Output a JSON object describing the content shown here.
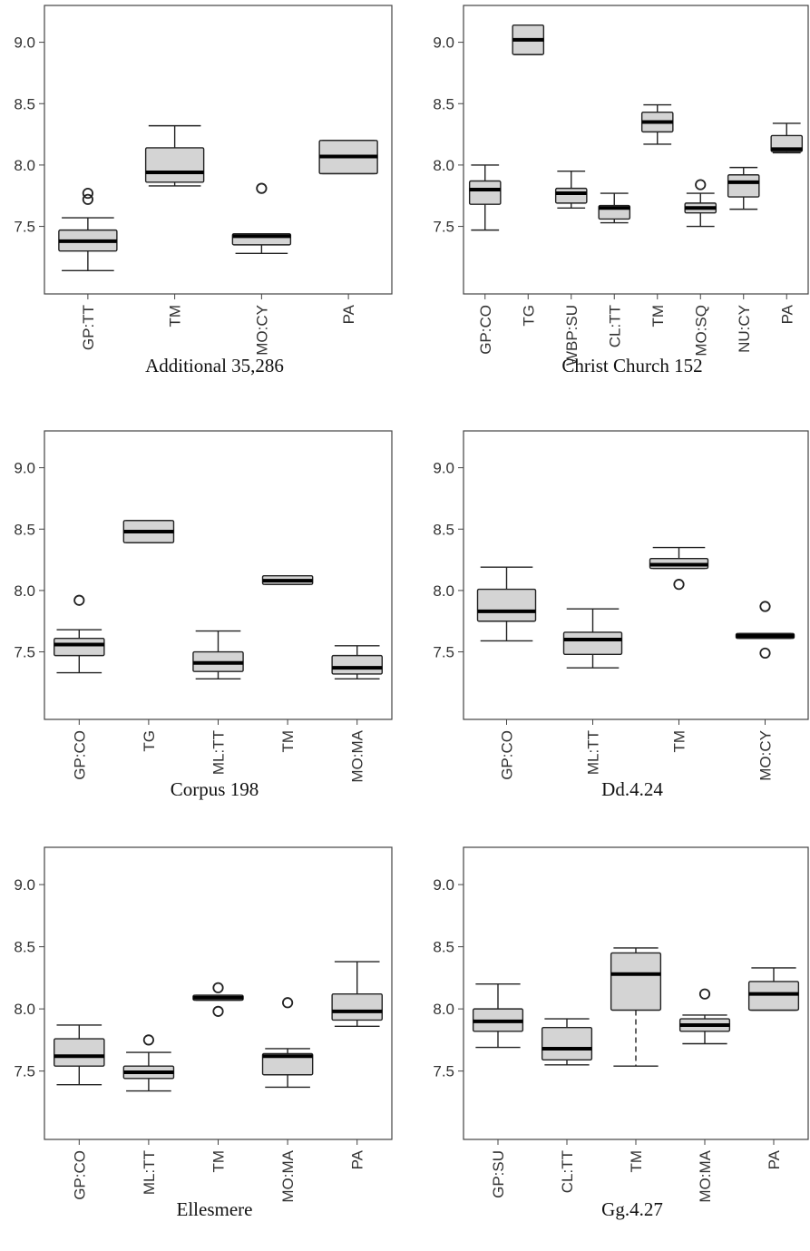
{
  "chart_data": [
    {
      "type": "box",
      "title": "Additional 35,286",
      "ylim": [
        6.95,
        9.3
      ],
      "yticks": [
        "7.5",
        "8.0",
        "8.5",
        "9.0"
      ],
      "categories": [
        "GP:TT",
        "TM",
        "MO:CY",
        "PA"
      ],
      "boxes": [
        {
          "min": 7.14,
          "q1": 7.3,
          "median": 7.38,
          "q3": 7.47,
          "max": 7.57,
          "outliers": [
            7.72,
            7.77
          ]
        },
        {
          "min": 7.83,
          "q1": 7.86,
          "median": 7.94,
          "q3": 8.14,
          "max": 8.32,
          "outliers": []
        },
        {
          "min": 7.28,
          "q1": 7.35,
          "median": 7.42,
          "q3": 7.44,
          "max": 7.44,
          "outliers": [
            7.81
          ]
        },
        {
          "min": 7.93,
          "q1": 7.93,
          "median": 8.07,
          "q3": 8.2,
          "max": 8.2,
          "outliers": []
        }
      ]
    },
    {
      "type": "box",
      "title": "Christ Church 152",
      "ylim": [
        6.95,
        9.3
      ],
      "yticks": [
        "7.5",
        "8.0",
        "8.5",
        "9.0"
      ],
      "categories": [
        "GP:CO",
        "TG",
        "WBP:SU",
        "CL:TT",
        "TM",
        "MO:SQ",
        "NU:CY",
        "PA"
      ],
      "boxes": [
        {
          "min": 7.47,
          "q1": 7.68,
          "median": 7.8,
          "q3": 7.87,
          "max": 8.0,
          "outliers": []
        },
        {
          "min": 8.9,
          "q1": 8.9,
          "median": 9.02,
          "q3": 9.14,
          "max": 9.14,
          "outliers": []
        },
        {
          "min": 7.65,
          "q1": 7.69,
          "median": 7.77,
          "q3": 7.81,
          "max": 7.95,
          "outliers": []
        },
        {
          "min": 7.53,
          "q1": 7.56,
          "median": 7.65,
          "q3": 7.67,
          "max": 7.77,
          "outliers": []
        },
        {
          "min": 8.17,
          "q1": 8.27,
          "median": 8.35,
          "q3": 8.43,
          "max": 8.49,
          "outliers": []
        },
        {
          "min": 7.5,
          "q1": 7.61,
          "median": 7.65,
          "q3": 7.69,
          "max": 7.77,
          "outliers": [
            7.84
          ]
        },
        {
          "min": 7.64,
          "q1": 7.74,
          "median": 7.86,
          "q3": 7.92,
          "max": 7.98,
          "outliers": []
        },
        {
          "min": 8.1,
          "q1": 8.11,
          "median": 8.13,
          "q3": 8.24,
          "max": 8.34,
          "outliers": []
        }
      ]
    },
    {
      "type": "box",
      "title": "Corpus 198",
      "ylim": [
        6.95,
        9.3
      ],
      "yticks": [
        "7.5",
        "8.0",
        "8.5",
        "9.0"
      ],
      "categories": [
        "GP:CO",
        "TG",
        "ML:TT",
        "TM",
        "MO:MA"
      ],
      "boxes": [
        {
          "min": 7.33,
          "q1": 7.47,
          "median": 7.56,
          "q3": 7.61,
          "max": 7.68,
          "outliers": [
            7.92
          ]
        },
        {
          "min": 8.39,
          "q1": 8.39,
          "median": 8.48,
          "q3": 8.57,
          "max": 8.57,
          "outliers": []
        },
        {
          "min": 7.28,
          "q1": 7.34,
          "median": 7.41,
          "q3": 7.5,
          "max": 7.67,
          "outliers": []
        },
        {
          "min": 8.05,
          "q1": 8.05,
          "median": 8.08,
          "q3": 8.12,
          "max": 8.12,
          "outliers": []
        },
        {
          "min": 7.28,
          "q1": 7.32,
          "median": 7.37,
          "q3": 7.47,
          "max": 7.55,
          "outliers": []
        }
      ]
    },
    {
      "type": "box",
      "title": "Dd.4.24",
      "ylim": [
        6.95,
        9.3
      ],
      "yticks": [
        "7.5",
        "8.0",
        "8.5",
        "9.0"
      ],
      "categories": [
        "GP:CO",
        "ML:TT",
        "TM",
        "MO:CY"
      ],
      "boxes": [
        {
          "min": 7.59,
          "q1": 7.75,
          "median": 7.83,
          "q3": 8.01,
          "max": 8.19,
          "outliers": []
        },
        {
          "min": 7.37,
          "q1": 7.48,
          "median": 7.6,
          "q3": 7.66,
          "max": 7.85,
          "outliers": []
        },
        {
          "min": 8.18,
          "q1": 8.18,
          "median": 8.21,
          "q3": 8.26,
          "max": 8.35,
          "outliers": [
            8.05
          ]
        },
        {
          "min": 7.61,
          "q1": 7.61,
          "median": 7.63,
          "q3": 7.65,
          "max": 7.65,
          "outliers": [
            7.49,
            7.87
          ]
        }
      ]
    },
    {
      "type": "box",
      "title": "Ellesmere",
      "ylim": [
        6.95,
        9.3
      ],
      "yticks": [
        "7.5",
        "8.0",
        "8.5",
        "9.0"
      ],
      "categories": [
        "GP:CO",
        "ML:TT",
        "TM",
        "MO:MA",
        "PA"
      ],
      "boxes": [
        {
          "min": 7.39,
          "q1": 7.54,
          "median": 7.62,
          "q3": 7.76,
          "max": 7.87,
          "outliers": []
        },
        {
          "min": 7.34,
          "q1": 7.44,
          "median": 7.49,
          "q3": 7.54,
          "max": 7.65,
          "outliers": [
            7.75
          ]
        },
        {
          "min": 8.07,
          "q1": 8.07,
          "median": 8.09,
          "q3": 8.11,
          "max": 8.11,
          "outliers": [
            8.17,
            7.98
          ]
        },
        {
          "min": 7.37,
          "q1": 7.47,
          "median": 7.62,
          "q3": 7.64,
          "max": 7.68,
          "outliers": [
            8.05
          ]
        },
        {
          "min": 7.86,
          "q1": 7.91,
          "median": 7.98,
          "q3": 8.12,
          "max": 8.38,
          "outliers": []
        }
      ]
    },
    {
      "type": "box",
      "title": "Gg.4.27",
      "ylim": [
        6.95,
        9.3
      ],
      "yticks": [
        "7.5",
        "8.0",
        "8.5",
        "9.0"
      ],
      "categories": [
        "GP:SU",
        "CL:TT",
        "TM",
        "MO:MA",
        "PA"
      ],
      "boxes": [
        {
          "min": 7.69,
          "q1": 7.82,
          "median": 7.9,
          "q3": 8.0,
          "max": 8.2,
          "outliers": []
        },
        {
          "min": 7.55,
          "q1": 7.59,
          "median": 7.68,
          "q3": 7.85,
          "max": 7.92,
          "outliers": []
        },
        {
          "min": 7.54,
          "q1": 7.99,
          "median": 8.28,
          "q3": 8.45,
          "max": 8.49,
          "outliers": []
        },
        {
          "min": 7.72,
          "q1": 7.82,
          "median": 7.87,
          "q3": 7.92,
          "max": 7.95,
          "outliers": [
            8.12
          ]
        },
        {
          "min": 7.99,
          "q1": 7.99,
          "median": 8.12,
          "q3": 8.22,
          "max": 8.33,
          "outliers": []
        }
      ]
    }
  ],
  "style": {
    "box_fill": "#d4d4d4",
    "line_color": "#222222",
    "frame_color": "#444444",
    "text_color": "#333333"
  }
}
